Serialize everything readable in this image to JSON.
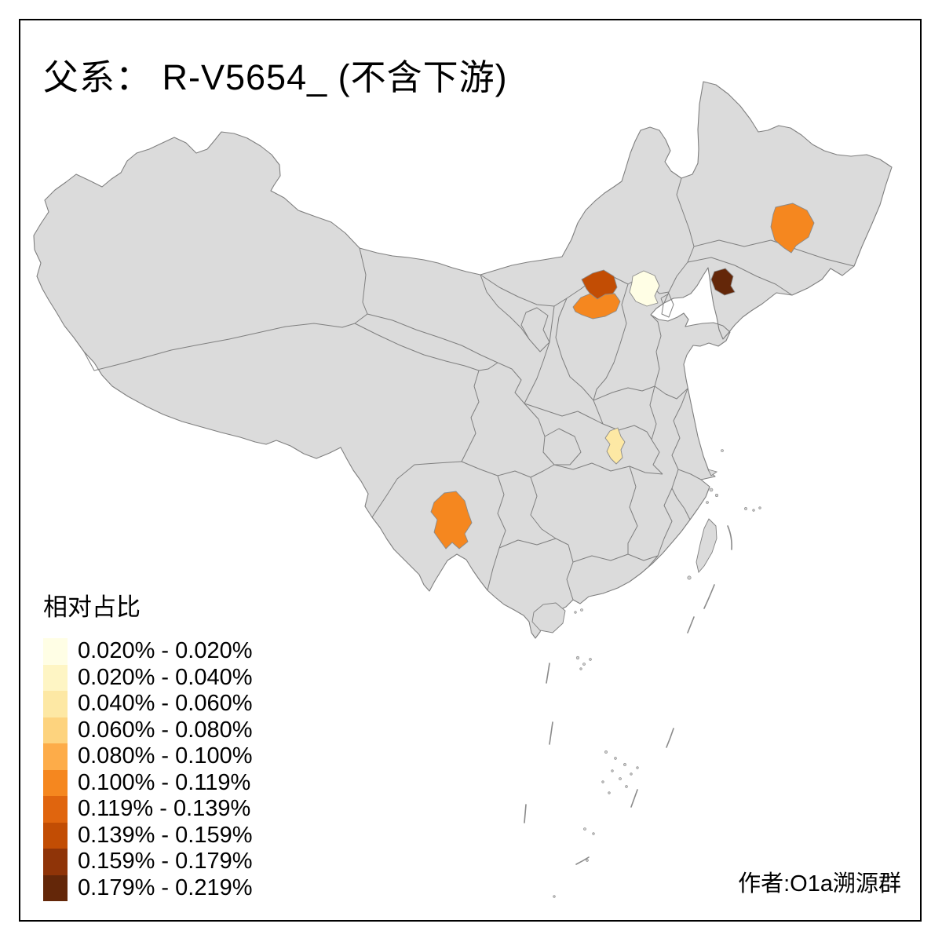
{
  "title": "父系： R-V5654_ (不含下游)",
  "attribution": "作者:O1a溯源群",
  "legend": {
    "title": "相对占比",
    "classes": [
      {
        "label": "0.020% - 0.020%",
        "color": "#FFFEE5"
      },
      {
        "label": "0.020% - 0.040%",
        "color": "#FEF5C4"
      },
      {
        "label": "0.040% - 0.060%",
        "color": "#FDE8A4"
      },
      {
        "label": "0.060% - 0.080%",
        "color": "#FDD37E"
      },
      {
        "label": "0.080% - 0.100%",
        "color": "#FDAC49"
      },
      {
        "label": "0.100% - 0.119%",
        "color": "#F5871F"
      },
      {
        "label": "0.119% - 0.139%",
        "color": "#E0650E"
      },
      {
        "label": "0.139% - 0.159%",
        "color": "#C24D04"
      },
      {
        "label": "0.159% - 0.179%",
        "color": "#8F3408"
      },
      {
        "label": "0.179% - 0.219%",
        "color": "#642709"
      }
    ]
  },
  "map": {
    "land_fill": "#DBDBDB",
    "border_color": "#7F7F7F",
    "sea_color": "#FFFFFF",
    "frame_color": "#000000",
    "highlighted_regions": [
      {
        "id": "beijing",
        "class_index": 0,
        "value_range": "0.020% - 0.020%"
      },
      {
        "id": "hubei-northwest",
        "class_index": 2,
        "value_range": "0.040% - 0.060%"
      },
      {
        "id": "jilin-central",
        "class_index": 5,
        "value_range": "0.100% - 0.119%"
      },
      {
        "id": "shanxi-central",
        "class_index": 5,
        "value_range": "0.100% - 0.119%"
      },
      {
        "id": "yunnan-central",
        "class_index": 5,
        "value_range": "0.100% - 0.119%"
      },
      {
        "id": "shanxi-north",
        "class_index": 7,
        "value_range": "0.139% - 0.159%"
      },
      {
        "id": "liaoning-central",
        "class_index": 9,
        "value_range": "0.179% - 0.219%"
      }
    ]
  },
  "chart_data": {
    "type": "choropleth_map",
    "title": "父系： R-V5654_ (不含下游)",
    "legend_title": "相对占比",
    "legend_position": "bottom-left",
    "classes": [
      "0.020% - 0.020%",
      "0.020% - 0.040%",
      "0.040% - 0.060%",
      "0.060% - 0.080%",
      "0.080% - 0.100%",
      "0.100% - 0.119%",
      "0.119% - 0.139%",
      "0.139% - 0.159%",
      "0.159% - 0.179%",
      "0.179% - 0.219%"
    ],
    "regions": [
      {
        "region": "beijing",
        "value_range": "0.020% - 0.020%"
      },
      {
        "region": "hubei-northwest",
        "value_range": "0.040% - 0.060%"
      },
      {
        "region": "jilin-central",
        "value_range": "0.100% - 0.119%"
      },
      {
        "region": "shanxi-central",
        "value_range": "0.100% - 0.119%"
      },
      {
        "region": "yunnan-central",
        "value_range": "0.100% - 0.119%"
      },
      {
        "region": "shanxi-north",
        "value_range": "0.139% - 0.159%"
      },
      {
        "region": "liaoning-central",
        "value_range": "0.179% - 0.219%"
      }
    ],
    "annotation": "作者:O1a溯源群"
  }
}
